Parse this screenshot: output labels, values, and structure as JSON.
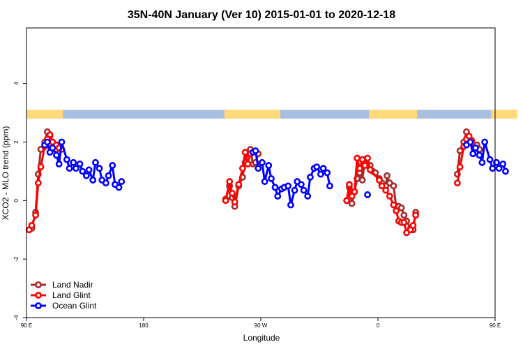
{
  "chart_data": {
    "type": "line",
    "title": "35N-40N January (Ver 10)   2015-01-01 to 2020-12-18",
    "xlabel": "Longitude",
    "ylabel": "XCO2 - MLO trend (ppm)",
    "xlim": [
      90,
      450
    ],
    "ylim": [
      -4,
      5.9
    ],
    "x_ticks": [
      {
        "value": 90,
        "label": "90 E"
      },
      {
        "value": 180,
        "label": "180"
      },
      {
        "value": 270,
        "label": "90 W"
      },
      {
        "value": 360,
        "label": "0"
      },
      {
        "value": 450,
        "label": "90 E"
      },
      {
        "value": 540,
        "label": "180"
      }
    ],
    "y_ticks": [
      {
        "value": -4,
        "label": "-4"
      },
      {
        "value": -2,
        "label": "-2"
      },
      {
        "value": 0,
        "label": "0"
      },
      {
        "value": 2,
        "label": "2"
      },
      {
        "value": 4,
        "label": "4"
      }
    ],
    "x_scale_note": "",
    "legend_position": "bottom-left",
    "land_mask": {
      "y_range": [
        2.8,
        3.1
      ],
      "land_color": "#FFD97A",
      "ocean_color": "#A9BFDF",
      "land_segments": [
        [
          90,
          118
        ],
        [
          242,
          285
        ],
        [
          353,
          378
        ],
        [
          375,
          390
        ],
        [
          447,
          467
        ]
      ]
    },
    "series": [
      {
        "name": "Land Nadir",
        "color": "#A52A2A",
        "points": [
          [
            92,
            -1.0
          ],
          [
            94,
            -0.95
          ],
          [
            97,
            -0.4
          ],
          [
            99,
            0.9
          ],
          [
            101,
            1.75
          ],
          [
            104,
            2.0
          ],
          [
            106,
            2.35
          ],
          [
            108,
            2.2
          ],
          [
            110,
            2.0
          ],
          [
            113,
            1.75
          ],
          [
            115,
            1.85
          ],
          [
            117,
            1.75
          ],
          [
            243,
            0.05
          ],
          [
            246,
            0.5
          ],
          [
            248,
            0.1
          ],
          [
            250,
            -0.2
          ],
          [
            253,
            0.5
          ],
          [
            256,
            0.8
          ],
          [
            258,
            1.3
          ],
          [
            260,
            1.6
          ],
          [
            262,
            1.75
          ],
          [
            264,
            1.25
          ],
          [
            266,
            1.3
          ],
          [
            268,
            1.6
          ],
          [
            336,
            0.0
          ],
          [
            338,
            0.45
          ],
          [
            340,
            -0.1
          ],
          [
            342,
            0.3
          ],
          [
            344,
            0.75
          ],
          [
            346,
            0.95
          ],
          [
            348,
            0.7
          ],
          [
            350,
            1.4
          ],
          [
            352,
            1.2
          ],
          [
            354,
            1.2
          ],
          [
            356,
            1.0
          ],
          [
            358,
            0.95
          ],
          [
            361,
            0.75
          ],
          [
            363,
            0.6
          ],
          [
            366,
            0.5
          ],
          [
            367,
            0.85
          ],
          [
            369,
            0.6
          ],
          [
            372,
            0.5
          ],
          [
            374,
            -0.2
          ],
          [
            376,
            -0.2
          ],
          [
            378,
            -0.25
          ],
          [
            380,
            -0.5
          ],
          [
            382,
            -0.7
          ],
          [
            385,
            -0.95
          ],
          [
            387,
            -1.0
          ],
          [
            389,
            -0.4
          ],
          [
            421,
            0.9
          ],
          [
            423,
            1.7
          ],
          [
            426,
            2.0
          ],
          [
            428,
            2.35
          ],
          [
            430,
            2.1
          ],
          [
            434,
            1.8
          ],
          [
            436,
            1.9
          ],
          [
            438,
            1.75
          ]
        ]
      },
      {
        "name": "Land Glint",
        "color": "#FF0000",
        "points": [
          [
            92,
            -1.0
          ],
          [
            94,
            -0.85
          ],
          [
            97,
            -0.5
          ],
          [
            99,
            0.6
          ],
          [
            101,
            1.15
          ],
          [
            104,
            1.85
          ],
          [
            106,
            2.1
          ],
          [
            108,
            2.25
          ],
          [
            110,
            2.0
          ],
          [
            113,
            1.9
          ],
          [
            115,
            1.8
          ],
          [
            243,
            0.0
          ],
          [
            246,
            0.65
          ],
          [
            248,
            0.25
          ],
          [
            250,
            -0.05
          ],
          [
            253,
            0.55
          ],
          [
            256,
            1.1
          ],
          [
            258,
            1.65
          ],
          [
            260,
            1.25
          ],
          [
            262,
            1.6
          ],
          [
            264,
            1.65
          ],
          [
            336,
            0.0
          ],
          [
            338,
            0.55
          ],
          [
            340,
            0.15
          ],
          [
            342,
            0.3
          ],
          [
            344,
            1.45
          ],
          [
            346,
            1.1
          ],
          [
            348,
            1.4
          ],
          [
            350,
            1.2
          ],
          [
            352,
            1.45
          ],
          [
            354,
            1.05
          ],
          [
            361,
            0.7
          ],
          [
            363,
            0.5
          ],
          [
            366,
            0.35
          ],
          [
            369,
            0.15
          ],
          [
            372,
            -0.15
          ],
          [
            374,
            -0.35
          ],
          [
            376,
            -0.7
          ],
          [
            378,
            -0.75
          ],
          [
            380,
            -0.75
          ],
          [
            382,
            -1.1
          ],
          [
            385,
            -1.0
          ],
          [
            387,
            -0.85
          ],
          [
            389,
            -0.5
          ],
          [
            421,
            0.6
          ],
          [
            423,
            1.15
          ],
          [
            426,
            1.85
          ],
          [
            428,
            2.1
          ],
          [
            430,
            2.2
          ],
          [
            432,
            2.05
          ]
        ]
      },
      {
        "name": "Ocean Glint",
        "color": "#0000FF",
        "points": [
          [
            104,
            1.9
          ],
          [
            106,
            2.0
          ],
          [
            108,
            1.65
          ],
          [
            110,
            1.8
          ],
          [
            113,
            1.55
          ],
          [
            115,
            1.25
          ],
          [
            117,
            2.0
          ],
          [
            121,
            1.4
          ],
          [
            123,
            1.1
          ],
          [
            126,
            1.3
          ],
          [
            128,
            1.1
          ],
          [
            131,
            1.25
          ],
          [
            133,
            1.0
          ],
          [
            136,
            0.85
          ],
          [
            138,
            1.05
          ],
          [
            141,
            0.7
          ],
          [
            143,
            1.3
          ],
          [
            146,
            1.1
          ],
          [
            148,
            0.7
          ],
          [
            151,
            0.6
          ],
          [
            153,
            0.85
          ],
          [
            156,
            1.2
          ],
          [
            158,
            0.55
          ],
          [
            161,
            0.45
          ],
          [
            163,
            0.65
          ],
          [
            264,
            1.65
          ],
          [
            266,
            1.7
          ],
          [
            268,
            1.1
          ],
          [
            271,
            1.3
          ],
          [
            273,
            0.65
          ],
          [
            276,
            1.2
          ],
          [
            278,
            0.75
          ],
          [
            281,
            0.45
          ],
          [
            283,
            0.15
          ],
          [
            286,
            0.4
          ],
          [
            288,
            0.45
          ],
          [
            291,
            0.5
          ],
          [
            293,
            -0.15
          ],
          [
            296,
            0.35
          ],
          [
            298,
            0.65
          ],
          [
            301,
            0.55
          ],
          [
            303,
            0.35
          ],
          [
            306,
            0.15
          ],
          [
            308,
            0.8
          ],
          [
            311,
            1.1
          ],
          [
            313,
            1.15
          ],
          [
            316,
            0.9
          ],
          [
            318,
            1.1
          ],
          [
            321,
            0.95
          ],
          [
            323,
            0.5
          ],
          [
            352,
            0.2
          ],
          [
            428,
            1.9
          ],
          [
            431,
            2.0
          ],
          [
            433,
            1.6
          ],
          [
            435,
            1.8
          ],
          [
            438,
            1.55
          ],
          [
            440,
            1.3
          ],
          [
            442,
            2.0
          ],
          [
            446,
            1.4
          ],
          [
            448,
            1.1
          ],
          [
            451,
            1.3
          ],
          [
            453,
            1.1
          ],
          [
            456,
            1.25
          ],
          [
            458,
            1.0
          ]
        ]
      }
    ]
  }
}
